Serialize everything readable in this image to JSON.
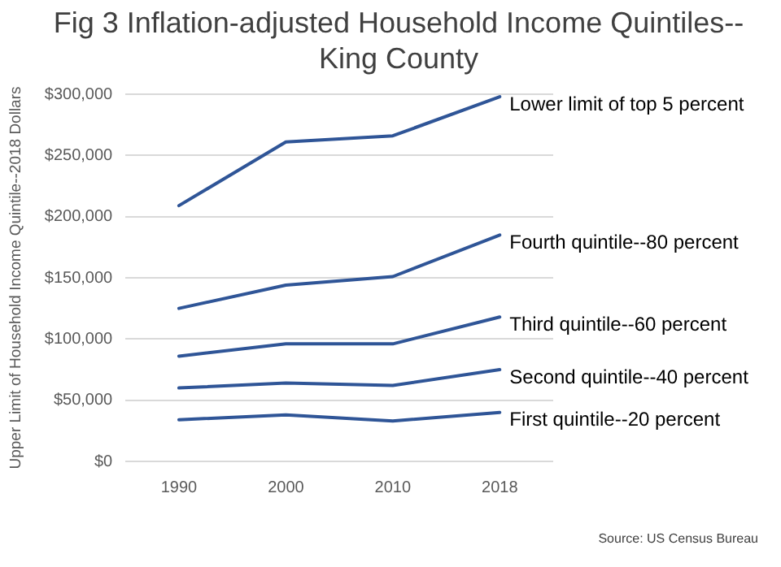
{
  "chart_data": {
    "type": "line",
    "title": "Fig 3 Inflation-adjusted Household Income Quintiles--King County",
    "ylabel": "Upper Limit of Household Income Quintile--2018 Dollars",
    "categories": [
      "1990",
      "2000",
      "2010",
      "2018"
    ],
    "series": [
      {
        "name": "Lower limit of top 5 percent",
        "color": "#2f5597",
        "values": [
          209000,
          261000,
          266000,
          298000
        ]
      },
      {
        "name": "Fourth quintile--80 percent",
        "color": "#2f5597",
        "values": [
          125000,
          144000,
          151000,
          185000
        ]
      },
      {
        "name": "Third quintile--60 percent",
        "color": "#2f5597",
        "values": [
          86000,
          96000,
          96000,
          118000
        ]
      },
      {
        "name": "Second quintile--40 percent",
        "color": "#2f5597",
        "values": [
          60000,
          64000,
          62000,
          75000
        ]
      },
      {
        "name": "First quintile--20 percent",
        "color": "#2f5597",
        "values": [
          34000,
          38000,
          33000,
          40000
        ]
      }
    ],
    "ylim": [
      0,
      300000
    ],
    "yticks": [
      {
        "value": 0,
        "label": "$0"
      },
      {
        "value": 50000,
        "label": "$50,000"
      },
      {
        "value": 100000,
        "label": "$100,000"
      },
      {
        "value": 150000,
        "label": "$150,000"
      },
      {
        "value": 200000,
        "label": "$200,000"
      },
      {
        "value": 250000,
        "label": "$250,000"
      },
      {
        "value": 300000,
        "label": "$300,000"
      }
    ],
    "grid": "y",
    "legend": false,
    "marker": "none",
    "line_style": "solid",
    "annotations": [
      "Source: US Census Bureau"
    ]
  }
}
